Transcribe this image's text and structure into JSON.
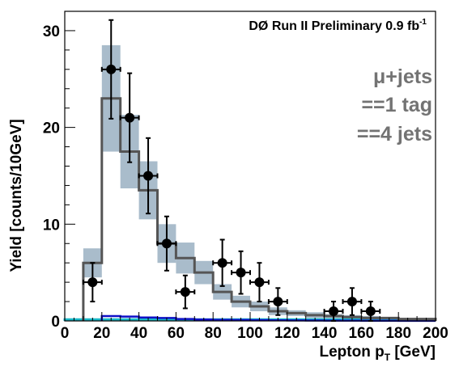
{
  "chart_data": {
    "type": "histogram",
    "title": "DØ Run II Preliminary 0.9 fb",
    "title_sup": "-1",
    "xlabel": "Lepton p",
    "xlabel_sub": "T",
    "xlabel_unit": " [GeV]",
    "ylabel": "Yield [counts/10GeV]",
    "xlim": [
      0,
      200
    ],
    "ylim": [
      0,
      32
    ],
    "x_ticks": [
      0,
      20,
      40,
      60,
      80,
      100,
      120,
      140,
      160,
      180,
      200
    ],
    "y_ticks": [
      0,
      10,
      20,
      30
    ],
    "annotations": [
      "μ+jets",
      "==1 tag",
      "==4 jets"
    ],
    "colors": {
      "band": "#a9bccb",
      "total": "#555555",
      "data": "#000000",
      "component_blue": "#1010c8",
      "component_cyan": "#18b8c8",
      "annotation": "#737373"
    },
    "mc_total": {
      "bin_edges": [
        10,
        20,
        30,
        40,
        50,
        60,
        70,
        80,
        90,
        100,
        110,
        120,
        130,
        140,
        150,
        160,
        170,
        180,
        190,
        200
      ],
      "values": [
        6.0,
        23.0,
        17.5,
        13.5,
        8.0,
        6.5,
        5.0,
        3.0,
        2.0,
        1.5,
        1.0,
        0.8,
        0.6,
        0.5,
        0.4,
        0.3,
        0.3,
        0.2,
        0.2
      ],
      "uncertainty": [
        1.5,
        5.5,
        3.8,
        3.0,
        2.0,
        1.6,
        1.2,
        0.8,
        0.6,
        0.5,
        0.4,
        0.3,
        0.3,
        0.2,
        0.2,
        0.2,
        0.1,
        0.1,
        0.1
      ]
    },
    "component_blue": {
      "bin_edges": [
        20,
        30,
        40,
        50,
        60,
        70,
        80,
        90,
        100,
        110,
        120,
        130,
        140,
        150,
        160,
        170,
        180,
        190,
        200
      ],
      "values": [
        0.5,
        0.45,
        0.35,
        0.3,
        0.2,
        0.15,
        0.12,
        0.1,
        0.08,
        0.06,
        0.05,
        0.04,
        0.03,
        0.03,
        0.02,
        0.02,
        0.01,
        0.01
      ]
    },
    "component_cyan": {
      "bin_edges": [
        0,
        200
      ],
      "values": [
        0.15
      ]
    },
    "data_points": {
      "x": [
        15,
        25,
        35,
        45,
        55,
        65,
        85,
        95,
        105,
        115,
        145,
        155,
        165
      ],
      "y": [
        4,
        26,
        21,
        15,
        8,
        3,
        6,
        5,
        4,
        2,
        1,
        2,
        1
      ],
      "err_low": [
        2.0,
        5.1,
        4.6,
        3.9,
        2.8,
        1.7,
        2.4,
        2.2,
        2.0,
        1.4,
        1.0,
        1.4,
        1.0
      ],
      "err_high": [
        2.0,
        5.1,
        4.6,
        3.9,
        2.8,
        1.7,
        2.4,
        2.2,
        2.0,
        1.4,
        1.0,
        1.4,
        1.0
      ],
      "x_half_width": 5
    }
  }
}
